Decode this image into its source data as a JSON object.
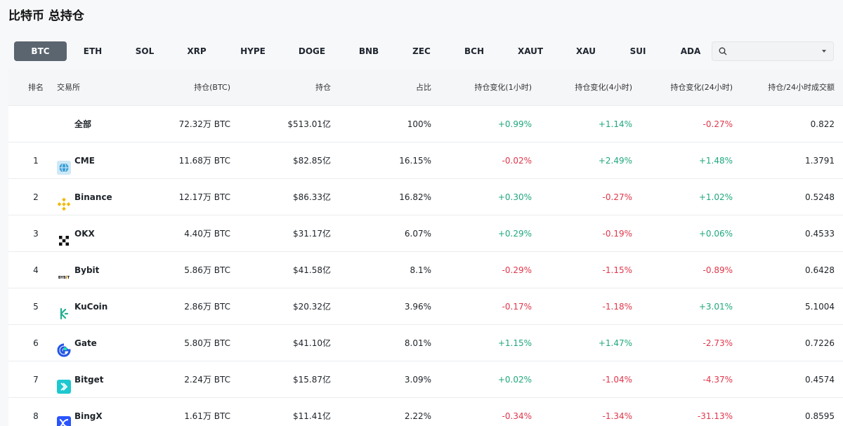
{
  "title": "比特币 总持仓",
  "tabs": [
    "BTC",
    "ETH",
    "SOL",
    "XRP",
    "HYPE",
    "DOGE",
    "BNB",
    "ZEC",
    "BCH",
    "XAUT",
    "XAU",
    "SUI",
    "ADA"
  ],
  "active_tab": "BTC",
  "search": {
    "placeholder": ""
  },
  "headers": {
    "rank": "排名",
    "exchange": "交易所",
    "oi_btc": "持仓(BTC)",
    "oi_usd": "持仓",
    "share": "占比",
    "chg_1h": "持仓变化(1小时)",
    "chg_4h": "持仓变化(4小时)",
    "chg_24h": "持仓变化(24小时)",
    "ratio": "持仓/24小时成交额"
  },
  "total": {
    "label": "全部",
    "oi_btc": "72.32万 BTC",
    "oi_usd": "$513.01亿",
    "share": "100%",
    "chg_1h": "+0.99%",
    "chg_4h": "+1.14%",
    "chg_24h": "-0.27%",
    "ratio": "0.822"
  },
  "rows": [
    {
      "rank": "1",
      "name": "CME",
      "icon": "cme-globe-icon",
      "oi_btc": "11.68万 BTC",
      "oi_usd": "$82.85亿",
      "share": "16.15%",
      "chg_1h": "-0.02%",
      "chg_4h": "+2.49%",
      "chg_24h": "+1.48%",
      "ratio": "1.3791"
    },
    {
      "rank": "2",
      "name": "Binance",
      "icon": "binance-logo-icon",
      "oi_btc": "12.17万 BTC",
      "oi_usd": "$86.33亿",
      "share": "16.82%",
      "chg_1h": "+0.30%",
      "chg_4h": "-0.27%",
      "chg_24h": "+1.02%",
      "ratio": "0.5248"
    },
    {
      "rank": "3",
      "name": "OKX",
      "icon": "okx-logo-icon",
      "oi_btc": "4.40万 BTC",
      "oi_usd": "$31.17亿",
      "share": "6.07%",
      "chg_1h": "+0.29%",
      "chg_4h": "-0.19%",
      "chg_24h": "+0.06%",
      "ratio": "0.4533"
    },
    {
      "rank": "4",
      "name": "Bybit",
      "icon": "bybit-logo-icon",
      "oi_btc": "5.86万 BTC",
      "oi_usd": "$41.58亿",
      "share": "8.1%",
      "chg_1h": "-0.29%",
      "chg_4h": "-1.15%",
      "chg_24h": "-0.89%",
      "ratio": "0.6428"
    },
    {
      "rank": "5",
      "name": "KuCoin",
      "icon": "kucoin-logo-icon",
      "oi_btc": "2.86万 BTC",
      "oi_usd": "$20.32亿",
      "share": "3.96%",
      "chg_1h": "-0.17%",
      "chg_4h": "-1.18%",
      "chg_24h": "+3.01%",
      "ratio": "5.1004"
    },
    {
      "rank": "6",
      "name": "Gate",
      "icon": "gate-logo-icon",
      "oi_btc": "5.80万 BTC",
      "oi_usd": "$41.10亿",
      "share": "8.01%",
      "chg_1h": "+1.15%",
      "chg_4h": "+1.47%",
      "chg_24h": "-2.73%",
      "ratio": "0.7226"
    },
    {
      "rank": "7",
      "name": "Bitget",
      "icon": "bitget-logo-icon",
      "oi_btc": "2.24万 BTC",
      "oi_usd": "$15.87亿",
      "share": "3.09%",
      "chg_1h": "+0.02%",
      "chg_4h": "-1.04%",
      "chg_24h": "-4.37%",
      "ratio": "0.4574"
    },
    {
      "rank": "8",
      "name": "BingX",
      "icon": "bingx-logo-icon",
      "oi_btc": "1.61万 BTC",
      "oi_usd": "$11.41亿",
      "share": "2.22%",
      "chg_1h": "-0.34%",
      "chg_4h": "-1.34%",
      "chg_24h": "-31.13%",
      "ratio": "0.8595"
    }
  ],
  "colors": {
    "positive": "#1fa77e",
    "negative": "#e0364b",
    "active_tab_bg": "#5b6570"
  }
}
